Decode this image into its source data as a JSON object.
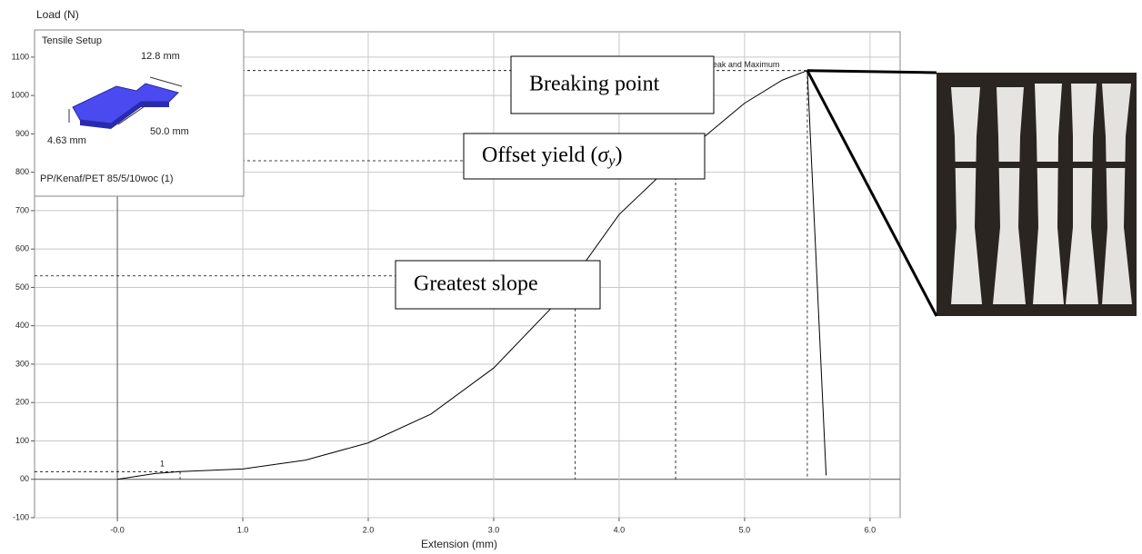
{
  "chart_data": {
    "type": "line",
    "y_axis_label": "Load (N)",
    "x_axis_label": "Extension (mm)",
    "xlim": [
      -0.66,
      6.24
    ],
    "ylim": [
      -100,
      1166
    ],
    "xticks": [
      {
        "value": 0,
        "label": "-0.0"
      },
      {
        "value": 1,
        "label": "1.0"
      },
      {
        "value": 2,
        "label": "2.0"
      },
      {
        "value": 3,
        "label": "3.0"
      },
      {
        "value": 4,
        "label": "4.0"
      },
      {
        "value": 5,
        "label": "5.0"
      },
      {
        "value": 6,
        "label": "6.0"
      }
    ],
    "yticks": [
      -100,
      {
        "value": 0,
        "label": "00"
      },
      100,
      200,
      300,
      400,
      500,
      600,
      700,
      800,
      900,
      1000,
      1100
    ],
    "grid": true,
    "series": [
      {
        "color": "#000000",
        "x": [
          0,
          0.3,
          0.5,
          1.0,
          1.5,
          2.0,
          2.5,
          3.0,
          3.5,
          3.65,
          4.0,
          4.45,
          5.0,
          5.3,
          5.5,
          5.65
        ],
        "values": [
          0,
          15,
          20,
          27,
          50,
          95,
          170,
          290,
          460,
          530,
          690,
          830,
          980,
          1040,
          1065,
          10
        ]
      }
    ],
    "reference_lines": [
      {
        "x": 0.5,
        "y": 20
      },
      {
        "x": 3.65,
        "y": 530
      },
      {
        "x": 4.45,
        "y": 830
      },
      {
        "x": 5.5,
        "y": 1065
      }
    ],
    "point_labels": [
      "1",
      "Peak and Maximum"
    ],
    "annotations": [
      {
        "text": "Breaking point"
      },
      {
        "text": "Offset yield (",
        "symbol": "σ",
        "subscript": "y",
        "tail": ")"
      },
      {
        "text": "Greatest slope"
      }
    ],
    "legend": {
      "title": "Tensile Setup",
      "width": "12.8 mm",
      "length": "50.0 mm",
      "thickness": "4.63 mm",
      "sample": "PP/Kenaf/PET 85/5/10woc (1)"
    }
  }
}
